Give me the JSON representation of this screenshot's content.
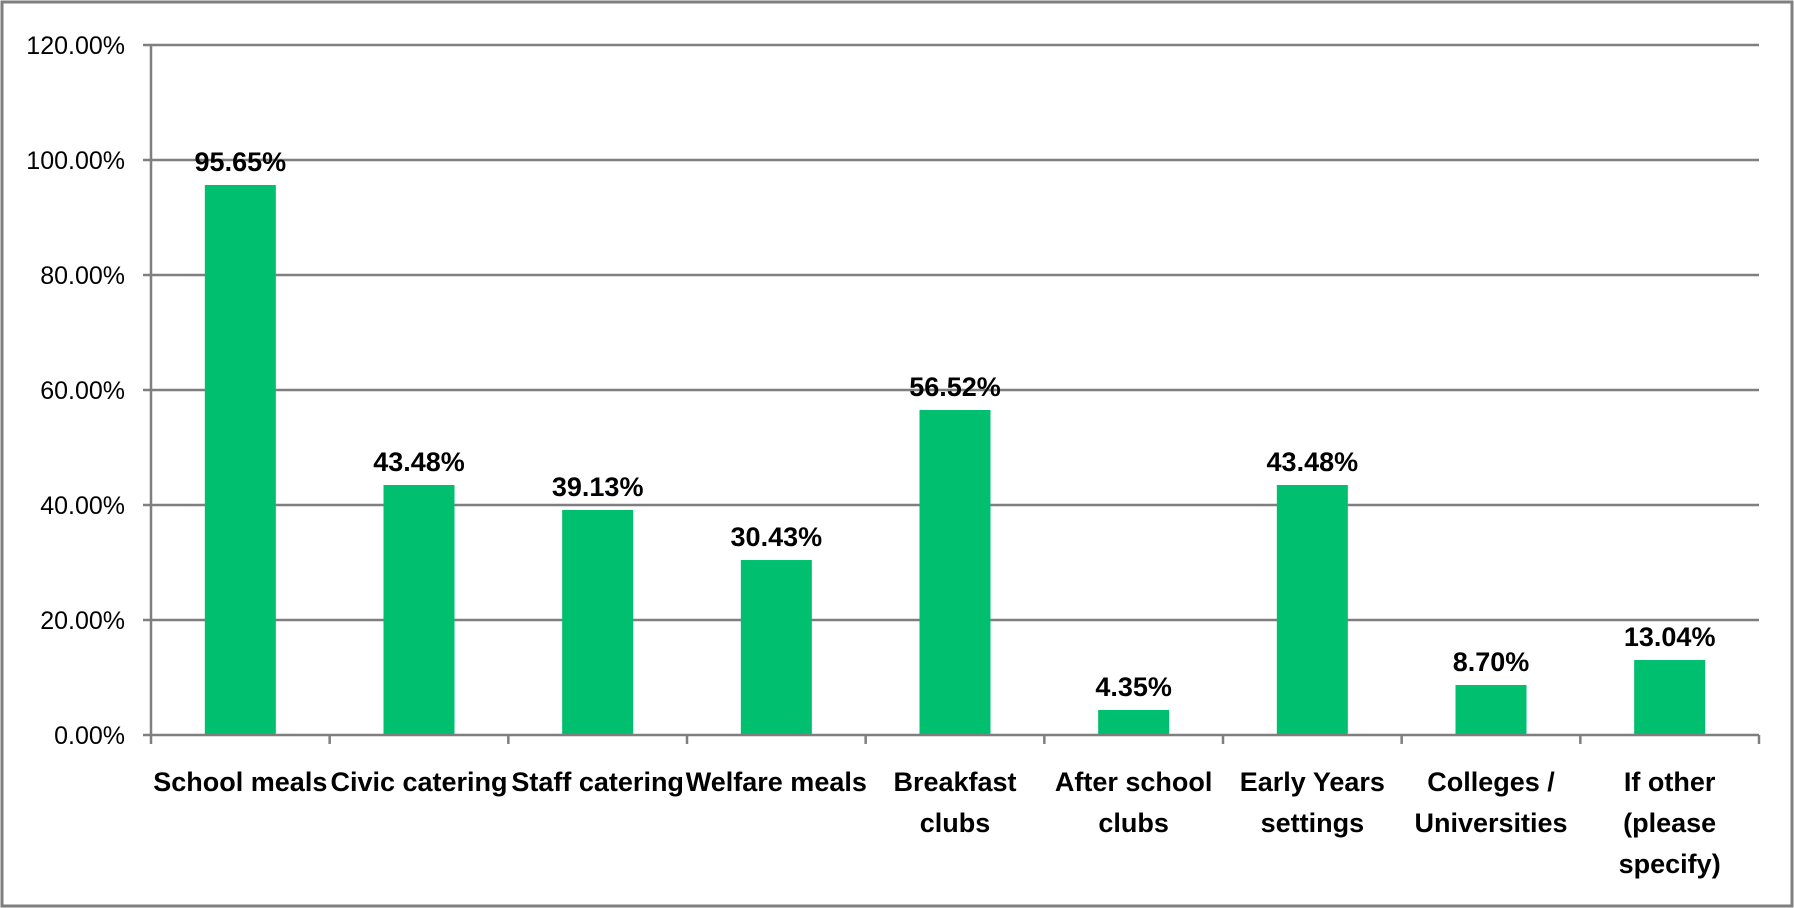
{
  "chart_data": {
    "type": "bar",
    "categories": [
      [
        "School meals"
      ],
      [
        "Civic catering"
      ],
      [
        "Staff catering"
      ],
      [
        "Welfare meals"
      ],
      [
        "Breakfast",
        "clubs"
      ],
      [
        "After school",
        "clubs"
      ],
      [
        "Early Years",
        "settings"
      ],
      [
        "Colleges /",
        "Universities"
      ],
      [
        "If other",
        "(please",
        "specify)"
      ]
    ],
    "values": [
      95.65,
      43.48,
      39.13,
      30.43,
      56.52,
      4.35,
      43.48,
      8.7,
      13.04
    ],
    "data_labels": [
      "95.65%",
      "43.48%",
      "39.13%",
      "30.43%",
      "56.52%",
      "4.35%",
      "43.48%",
      "8.70%",
      "13.04%"
    ],
    "y_ticks": [
      0,
      20,
      40,
      60,
      80,
      100,
      120
    ],
    "y_tick_labels": [
      "0.00%",
      "20.00%",
      "40.00%",
      "60.00%",
      "80.00%",
      "100.00%",
      "120.00%"
    ],
    "ylim": [
      0,
      120
    ],
    "grid": true,
    "legend": "none",
    "title": "",
    "xlabel": "",
    "ylabel": "",
    "bar_color": "#00BF6F",
    "grid_color": "#7F7F7F",
    "border_color": "#7F7F7F"
  }
}
